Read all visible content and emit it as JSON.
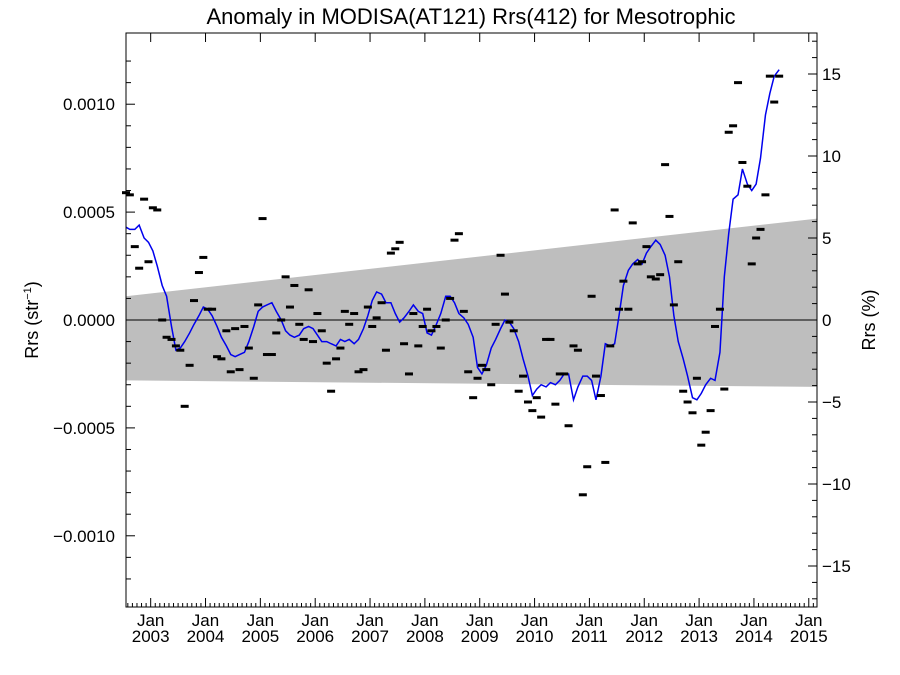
{
  "chart_data": {
    "type": "line",
    "title": "Anomaly in MODISA(AT121) Rrs(412) for Mesotrophic",
    "ylabel_left_main": "Rrs (str",
    "ylabel_left_sup": "−1",
    "ylabel_left_close": ")",
    "ylabel_right": "Rrs (%)",
    "xlabel": "",
    "xlim": [
      2002.55,
      2015.15
    ],
    "ylim": [
      -0.00133,
      0.00133
    ],
    "ylim_right_percent": [
      -17.5,
      17.5
    ],
    "grid": false,
    "legend": "none",
    "colors": {
      "smoothed": "#0000ee",
      "monthly": "#000000",
      "band": "#bebebe",
      "zero_line": "#000000"
    },
    "x_tick_labels": [
      {
        "x": 2003.0,
        "top": "Jan",
        "bottom": "2003"
      },
      {
        "x": 2004.0,
        "top": "Jan",
        "bottom": "2004"
      },
      {
        "x": 2005.0,
        "top": "Jan",
        "bottom": "2005"
      },
      {
        "x": 2006.0,
        "top": "Jan",
        "bottom": "2006"
      },
      {
        "x": 2007.0,
        "top": "Jan",
        "bottom": "2007"
      },
      {
        "x": 2008.0,
        "top": "Jan",
        "bottom": "2008"
      },
      {
        "x": 2009.0,
        "top": "Jan",
        "bottom": "2009"
      },
      {
        "x": 2010.0,
        "top": "Jan",
        "bottom": "2010"
      },
      {
        "x": 2011.0,
        "top": "Jan",
        "bottom": "2011"
      },
      {
        "x": 2012.0,
        "top": "Jan",
        "bottom": "2012"
      },
      {
        "x": 2013.0,
        "top": "Jan",
        "bottom": "2013"
      },
      {
        "x": 2014.0,
        "top": "Jan",
        "bottom": "2014"
      },
      {
        "x": 2015.0,
        "top": "Jan",
        "bottom": "2015"
      }
    ],
    "y_tick_labels_left": [
      {
        "value": 0.001,
        "label": "0.0010"
      },
      {
        "value": 0.0005,
        "label": "0.0005"
      },
      {
        "value": 0.0,
        "label": "0.0000"
      },
      {
        "value": -0.0005,
        "label": "−0.0005"
      },
      {
        "value": -0.001,
        "label": "−0.0010"
      }
    ],
    "y_tick_labels_right": [
      {
        "value": 15,
        "label": "15"
      },
      {
        "value": 10,
        "label": "10"
      },
      {
        "value": 5,
        "label": "5"
      },
      {
        "value": 0,
        "label": "0"
      },
      {
        "value": -5,
        "label": "−5"
      },
      {
        "value": -10,
        "label": "−10"
      },
      {
        "value": -15,
        "label": "−15"
      }
    ],
    "band": {
      "x": [
        2002.55,
        2015.15
      ],
      "upper": [
        0.00011,
        0.00047
      ],
      "lower": [
        -0.00028,
        -0.00031
      ]
    },
    "monthly_points": [
      [
        2002.54,
        0.00059
      ],
      [
        2002.62,
        0.00058
      ],
      [
        2002.71,
        0.00034
      ],
      [
        2002.79,
        0.00024
      ],
      [
        2002.88,
        0.00056
      ],
      [
        2002.96,
        0.00027
      ],
      [
        2003.04,
        0.00052
      ],
      [
        2003.12,
        0.00051
      ],
      [
        2003.21,
        0.0
      ],
      [
        2003.29,
        -8e-05
      ],
      [
        2003.38,
        -9e-05
      ],
      [
        2003.46,
        -0.00012
      ],
      [
        2003.54,
        -0.00014
      ],
      [
        2003.62,
        -0.0004
      ],
      [
        2003.71,
        -0.00021
      ],
      [
        2003.79,
        9e-05
      ],
      [
        2003.88,
        0.00022
      ],
      [
        2003.96,
        0.00029
      ],
      [
        2004.04,
        5e-05
      ],
      [
        2004.12,
        5e-05
      ],
      [
        2004.21,
        -0.00017
      ],
      [
        2004.29,
        -0.00018
      ],
      [
        2004.38,
        -5e-05
      ],
      [
        2004.46,
        -0.00024
      ],
      [
        2004.54,
        -4e-05
      ],
      [
        2004.62,
        -0.00023
      ],
      [
        2004.71,
        -3e-05
      ],
      [
        2004.79,
        -0.00013
      ],
      [
        2004.88,
        -0.00027
      ],
      [
        2004.96,
        7e-05
      ],
      [
        2005.04,
        0.00047
      ],
      [
        2005.12,
        -0.00016
      ],
      [
        2005.21,
        -0.00016
      ],
      [
        2005.29,
        -6e-05
      ],
      [
        2005.38,
        0.0
      ],
      [
        2005.46,
        0.0002
      ],
      [
        2005.54,
        6e-05
      ],
      [
        2005.62,
        0.00016
      ],
      [
        2005.71,
        -2e-05
      ],
      [
        2005.79,
        -9e-05
      ],
      [
        2005.88,
        0.00014
      ],
      [
        2005.96,
        -0.0001
      ],
      [
        2006.04,
        3e-05
      ],
      [
        2006.12,
        -5e-05
      ],
      [
        2006.21,
        -0.0002
      ],
      [
        2006.29,
        -0.00033
      ],
      [
        2006.38,
        -0.00018
      ],
      [
        2006.46,
        -0.00013
      ],
      [
        2006.54,
        4e-05
      ],
      [
        2006.62,
        -2e-05
      ],
      [
        2006.71,
        3e-05
      ],
      [
        2006.79,
        -0.00024
      ],
      [
        2006.88,
        -0.00023
      ],
      [
        2006.96,
        6e-05
      ],
      [
        2007.04,
        -3e-05
      ],
      [
        2007.12,
        1e-05
      ],
      [
        2007.21,
        8e-05
      ],
      [
        2007.29,
        -0.00014
      ],
      [
        2007.38,
        0.00031
      ],
      [
        2007.46,
        0.00033
      ],
      [
        2007.54,
        0.00036
      ],
      [
        2007.62,
        -0.00011
      ],
      [
        2007.71,
        -0.00025
      ],
      [
        2007.79,
        3e-05
      ],
      [
        2007.88,
        -0.00012
      ],
      [
        2007.96,
        -3e-05
      ],
      [
        2008.04,
        5e-05
      ],
      [
        2008.12,
        -5e-05
      ],
      [
        2008.21,
        -3e-05
      ],
      [
        2008.29,
        -0.00013
      ],
      [
        2008.38,
        0.0
      ],
      [
        2008.46,
        0.0001
      ],
      [
        2008.54,
        0.00037
      ],
      [
        2008.62,
        0.0004
      ],
      [
        2008.71,
        4e-05
      ],
      [
        2008.79,
        -0.00024
      ],
      [
        2008.88,
        -0.00036
      ],
      [
        2008.96,
        -0.00027
      ],
      [
        2009.04,
        -0.00021
      ],
      [
        2009.12,
        -0.00023
      ],
      [
        2009.21,
        -0.0003
      ],
      [
        2009.29,
        -2e-05
      ],
      [
        2009.38,
        0.0003
      ],
      [
        2009.46,
        0.00012
      ],
      [
        2009.54,
        -1e-05
      ],
      [
        2009.62,
        -5e-05
      ],
      [
        2009.71,
        -0.00033
      ],
      [
        2009.79,
        -0.00026
      ],
      [
        2009.88,
        -0.00038
      ],
      [
        2009.96,
        -0.00042
      ],
      [
        2010.04,
        -0.00036
      ],
      [
        2010.12,
        -0.00045
      ],
      [
        2010.21,
        -9e-05
      ],
      [
        2010.29,
        -9e-05
      ],
      [
        2010.38,
        -0.00039
      ],
      [
        2010.46,
        -0.00025
      ],
      [
        2010.54,
        -0.00025
      ],
      [
        2010.62,
        -0.00049
      ],
      [
        2010.71,
        -0.00012
      ],
      [
        2010.79,
        -0.00014
      ],
      [
        2010.88,
        -0.00081
      ],
      [
        2010.96,
        -0.00068
      ],
      [
        2011.04,
        0.00011
      ],
      [
        2011.12,
        -0.00026
      ],
      [
        2011.21,
        -0.00035
      ],
      [
        2011.29,
        -0.00066
      ],
      [
        2011.38,
        -0.00012
      ],
      [
        2011.46,
        0.00051
      ],
      [
        2011.54,
        5e-05
      ],
      [
        2011.62,
        0.00018
      ],
      [
        2011.71,
        5e-05
      ],
      [
        2011.79,
        0.00045
      ],
      [
        2011.88,
        0.00026
      ],
      [
        2011.96,
        0.00027
      ],
      [
        2012.04,
        0.00034
      ],
      [
        2012.12,
        0.0002
      ],
      [
        2012.21,
        0.00019
      ],
      [
        2012.29,
        0.00021
      ],
      [
        2012.38,
        0.00072
      ],
      [
        2012.46,
        0.00048
      ],
      [
        2012.54,
        7e-05
      ],
      [
        2012.62,
        0.00027
      ],
      [
        2012.71,
        -0.00033
      ],
      [
        2012.79,
        -0.00038
      ],
      [
        2012.88,
        -0.00043
      ],
      [
        2012.96,
        -0.00027
      ],
      [
        2013.04,
        -0.00058
      ],
      [
        2013.12,
        -0.00052
      ],
      [
        2013.21,
        -0.00042
      ],
      [
        2013.29,
        -3e-05
      ],
      [
        2013.38,
        5e-05
      ],
      [
        2013.46,
        -0.00032
      ],
      [
        2013.54,
        0.00087
      ],
      [
        2013.62,
        0.0009
      ],
      [
        2013.71,
        0.0011
      ],
      [
        2013.79,
        0.00073
      ],
      [
        2013.88,
        0.00062
      ],
      [
        2013.96,
        0.00026
      ],
      [
        2014.04,
        0.00038
      ],
      [
        2014.12,
        0.00042
      ],
      [
        2014.21,
        0.00058
      ],
      [
        2014.29,
        0.00113
      ],
      [
        2014.37,
        0.00101
      ],
      [
        2014.46,
        0.00113
      ]
    ],
    "smoothed_series": {
      "x": [
        2002.54,
        2002.62,
        2002.71,
        2002.79,
        2002.88,
        2002.96,
        2003.04,
        2003.12,
        2003.21,
        2003.29,
        2003.38,
        2003.46,
        2003.54,
        2003.62,
        2003.71,
        2003.79,
        2003.88,
        2003.96,
        2004.04,
        2004.12,
        2004.21,
        2004.29,
        2004.38,
        2004.46,
        2004.54,
        2004.62,
        2004.71,
        2004.79,
        2004.88,
        2004.96,
        2005.04,
        2005.12,
        2005.21,
        2005.29,
        2005.38,
        2005.46,
        2005.54,
        2005.62,
        2005.71,
        2005.79,
        2005.88,
        2005.96,
        2006.04,
        2006.12,
        2006.21,
        2006.29,
        2006.38,
        2006.46,
        2006.54,
        2006.62,
        2006.71,
        2006.79,
        2006.88,
        2006.96,
        2007.04,
        2007.12,
        2007.21,
        2007.29,
        2007.38,
        2007.46,
        2007.54,
        2007.62,
        2007.71,
        2007.79,
        2007.88,
        2007.96,
        2008.04,
        2008.12,
        2008.21,
        2008.29,
        2008.38,
        2008.46,
        2008.54,
        2008.62,
        2008.71,
        2008.79,
        2008.88,
        2008.96,
        2009.04,
        2009.12,
        2009.21,
        2009.29,
        2009.38,
        2009.46,
        2009.54,
        2009.62,
        2009.71,
        2009.79,
        2009.88,
        2009.96,
        2010.04,
        2010.12,
        2010.21,
        2010.29,
        2010.38,
        2010.46,
        2010.54,
        2010.62,
        2010.71,
        2010.79,
        2010.88,
        2010.96,
        2011.04,
        2011.12,
        2011.21,
        2011.29,
        2011.38,
        2011.46,
        2011.54,
        2011.62,
        2011.71,
        2011.79,
        2011.88,
        2011.96,
        2012.04,
        2012.12,
        2012.21,
        2012.29,
        2012.38,
        2012.46,
        2012.54,
        2012.62,
        2012.71,
        2012.79,
        2012.88,
        2012.96,
        2013.04,
        2013.12,
        2013.21,
        2013.29,
        2013.38,
        2013.46,
        2013.54,
        2013.62,
        2013.71,
        2013.79,
        2013.88,
        2013.96,
        2014.04,
        2014.12,
        2014.21,
        2014.29,
        2014.37,
        2014.46
      ],
      "y": [
        0.00043,
        0.00042,
        0.00042,
        0.00044,
        0.00038,
        0.00036,
        0.00032,
        0.00025,
        0.00016,
        0.00011,
        -3e-05,
        -0.00014,
        -0.00013,
        -0.0001,
        -6e-05,
        -2e-05,
        2e-05,
        6e-05,
        5e-05,
        2e-05,
        -3e-05,
        -8e-05,
        -0.00012,
        -0.00016,
        -0.00017,
        -0.00016,
        -0.00015,
        -0.0001,
        -3e-05,
        4e-05,
        6e-05,
        7e-05,
        8e-05,
        4e-05,
        0.0,
        -5e-05,
        -7e-05,
        -8e-05,
        -7e-05,
        -4e-05,
        -3e-05,
        -4e-05,
        -7e-05,
        -0.0001,
        -0.0001,
        -0.00011,
        -0.00012,
        -9e-05,
        -0.0001,
        -9e-05,
        -0.00011,
        -9e-05,
        -4e-05,
        2e-05,
        9e-05,
        0.00013,
        0.00012,
        8e-05,
        8e-05,
        3e-05,
        -1e-05,
        1e-05,
        4e-05,
        7e-05,
        4e-05,
        3e-05,
        -6e-05,
        -7e-05,
        -2e-05,
        3e-05,
        0.00011,
        0.00011,
        8e-05,
        3e-05,
        1e-05,
        -2e-05,
        -8e-05,
        -0.00022,
        -0.00025,
        -0.00021,
        -0.00013,
        -9e-05,
        -4e-05,
        0.0,
        -1e-05,
        -4e-05,
        -0.0001,
        -0.00018,
        -0.00026,
        -0.00035,
        -0.00032,
        -0.0003,
        -0.00031,
        -0.00029,
        -0.0003,
        -0.00028,
        -0.00025,
        -0.00025,
        -0.00037,
        -0.00031,
        -0.00026,
        -0.00026,
        -0.00028,
        -0.00037,
        -0.00026,
        -0.00011,
        -0.00012,
        -0.00011,
        2e-05,
        0.00016,
        0.00023,
        0.00026,
        0.00028,
        0.00026,
        0.00031,
        0.00034,
        0.00037,
        0.00035,
        0.0003,
        0.0002,
        2e-05,
        -0.0001,
        -0.00018,
        -0.00026,
        -0.00036,
        -0.00037,
        -0.00034,
        -0.0003,
        -0.00027,
        -0.00028,
        -0.00015,
        0.0002,
        0.0004,
        0.00056,
        0.00058,
        0.0007,
        0.00063,
        0.0006,
        0.00063,
        0.00075,
        0.00095,
        0.00105,
        0.00113,
        0.00116
      ]
    }
  }
}
